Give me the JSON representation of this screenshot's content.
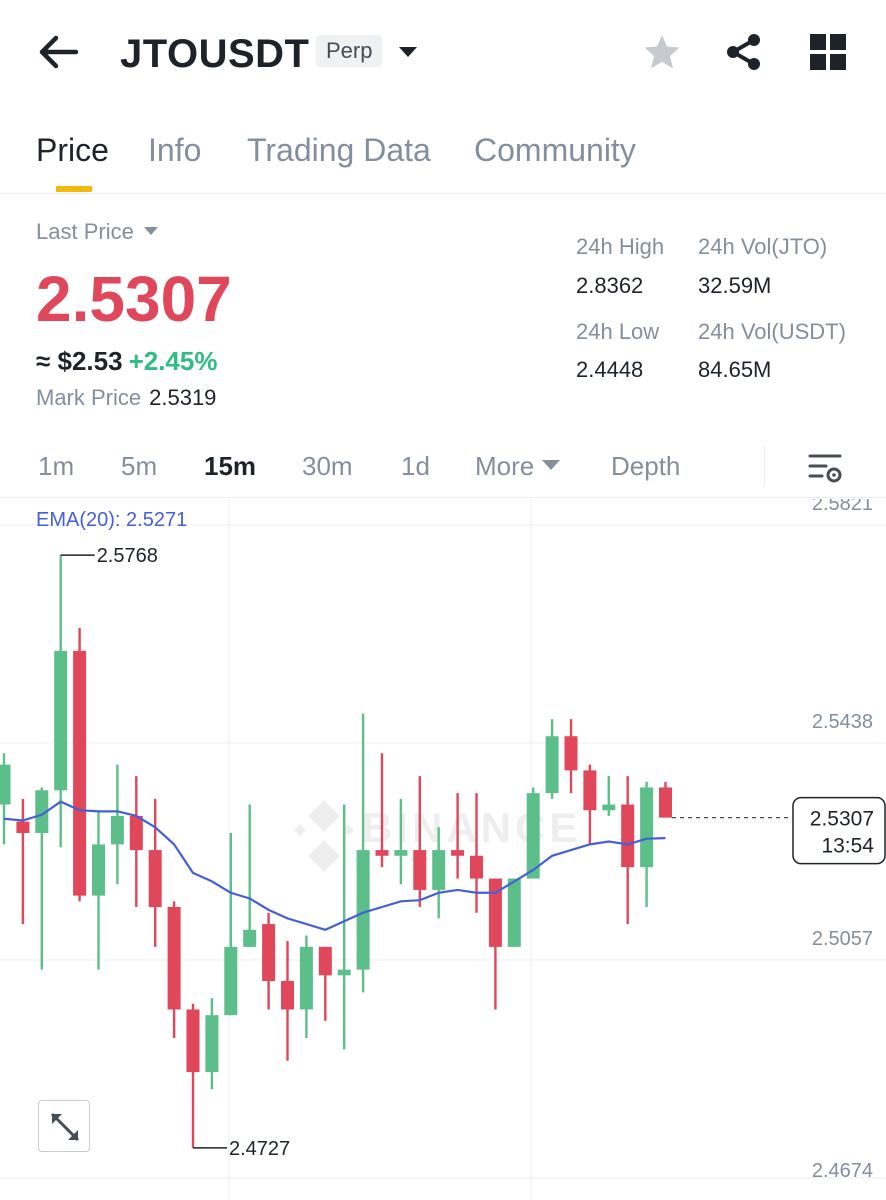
{
  "header": {
    "symbol": "JTOUSDT",
    "contract_type": "Perp"
  },
  "tabs": [
    "Price",
    "Info",
    "Trading Data",
    "Community"
  ],
  "active_tab": "Price",
  "price": {
    "label": "Last Price",
    "last": "2.5307",
    "approx": "≈ $2.53",
    "change": "+2.45%",
    "mark_label": "Mark Price",
    "mark_value": "2.5319"
  },
  "stats": {
    "high_label": "24h High",
    "high": "2.8362",
    "low_label": "24h Low",
    "low": "2.4448",
    "vol_base_label": "24h Vol(JTO)",
    "vol_base": "32.59M",
    "vol_quote_label": "24h Vol(USDT)",
    "vol_quote": "84.65M"
  },
  "intervals": {
    "items": [
      "1m",
      "5m",
      "15m",
      "30m",
      "1d"
    ],
    "active": "15m",
    "more": "More",
    "depth": "Depth"
  },
  "chart": {
    "ema_label": "EMA(20): 2.5271",
    "watermark": "BINANCE",
    "y_ticks": [
      "2.5821",
      "2.5438",
      "2.5057",
      "2.4674"
    ],
    "high_label": "2.5768",
    "low_label": "2.4727",
    "current_price": "2.5307",
    "countdown": "13:54"
  },
  "chart_data": {
    "type": "candlestick",
    "ylim": [
      2.4674,
      2.5821
    ],
    "candles": [
      {
        "o": 2.533,
        "h": 2.542,
        "l": 2.526,
        "c": 2.54
      },
      {
        "o": 2.53,
        "h": 2.534,
        "l": 2.512,
        "c": 2.528
      },
      {
        "o": 2.528,
        "h": 2.536,
        "l": 2.504,
        "c": 2.5355
      },
      {
        "o": 2.5355,
        "h": 2.5768,
        "l": 2.5255,
        "c": 2.56
      },
      {
        "o": 2.56,
        "h": 2.564,
        "l": 2.516,
        "c": 2.517
      },
      {
        "o": 2.517,
        "h": 2.532,
        "l": 2.504,
        "c": 2.526
      },
      {
        "o": 2.526,
        "h": 2.54,
        "l": 2.519,
        "c": 2.531
      },
      {
        "o": 2.531,
        "h": 2.538,
        "l": 2.515,
        "c": 2.525
      },
      {
        "o": 2.525,
        "h": 2.534,
        "l": 2.508,
        "c": 2.515
      },
      {
        "o": 2.515,
        "h": 2.516,
        "l": 2.492,
        "c": 2.497
      },
      {
        "o": 2.497,
        "h": 2.498,
        "l": 2.4727,
        "c": 2.486
      },
      {
        "o": 2.486,
        "h": 2.499,
        "l": 2.483,
        "c": 2.496
      },
      {
        "o": 2.496,
        "h": 2.528,
        "l": 2.496,
        "c": 2.508
      },
      {
        "o": 2.508,
        "h": 2.533,
        "l": 2.508,
        "c": 2.511
      },
      {
        "o": 2.512,
        "h": 2.514,
        "l": 2.497,
        "c": 2.502
      },
      {
        "o": 2.502,
        "h": 2.509,
        "l": 2.488,
        "c": 2.497
      },
      {
        "o": 2.497,
        "h": 2.51,
        "l": 2.492,
        "c": 2.508
      },
      {
        "o": 2.508,
        "h": 2.508,
        "l": 2.495,
        "c": 2.503
      },
      {
        "o": 2.503,
        "h": 2.533,
        "l": 2.49,
        "c": 2.504
      },
      {
        "o": 2.504,
        "h": 2.549,
        "l": 2.5,
        "c": 2.525
      },
      {
        "o": 2.525,
        "h": 2.542,
        "l": 2.522,
        "c": 2.524
      },
      {
        "o": 2.524,
        "h": 2.534,
        "l": 2.519,
        "c": 2.525
      },
      {
        "o": 2.525,
        "h": 2.538,
        "l": 2.515,
        "c": 2.518
      },
      {
        "o": 2.518,
        "h": 2.529,
        "l": 2.513,
        "c": 2.525
      },
      {
        "o": 2.525,
        "h": 2.535,
        "l": 2.52,
        "c": 2.524
      },
      {
        "o": 2.524,
        "h": 2.535,
        "l": 2.514,
        "c": 2.52
      },
      {
        "o": 2.52,
        "h": 2.52,
        "l": 2.497,
        "c": 2.508
      },
      {
        "o": 2.508,
        "h": 2.52,
        "l": 2.508,
        "c": 2.52
      },
      {
        "o": 2.52,
        "h": 2.536,
        "l": 2.52,
        "c": 2.535
      },
      {
        "o": 2.535,
        "h": 2.548,
        "l": 2.534,
        "c": 2.545
      },
      {
        "o": 2.545,
        "h": 2.548,
        "l": 2.535,
        "c": 2.539
      },
      {
        "o": 2.539,
        "h": 2.54,
        "l": 2.526,
        "c": 2.532
      },
      {
        "o": 2.532,
        "h": 2.538,
        "l": 2.531,
        "c": 2.533
      },
      {
        "o": 2.533,
        "h": 2.538,
        "l": 2.512,
        "c": 2.522
      },
      {
        "o": 2.522,
        "h": 2.537,
        "l": 2.515,
        "c": 2.536
      },
      {
        "o": 2.536,
        "h": 2.537,
        "l": 2.531,
        "c": 2.5307
      }
    ],
    "ema": [
      2.5305,
      2.5302,
      2.5312,
      2.5335,
      2.532,
      2.5318,
      2.5318,
      2.531,
      2.529,
      2.526,
      2.521,
      2.5195,
      2.5175,
      2.5165,
      2.5145,
      2.513,
      2.512,
      2.511,
      2.5125,
      2.514,
      2.515,
      2.516,
      2.5162,
      2.5175,
      2.518,
      2.5175,
      2.5175,
      2.5195,
      2.5215,
      2.524,
      2.525,
      2.526,
      2.5265,
      2.526,
      2.527,
      2.5271
    ],
    "colors": {
      "up": "#5cbf8a",
      "down": "#e0475a",
      "ema": "#4560d6"
    }
  }
}
